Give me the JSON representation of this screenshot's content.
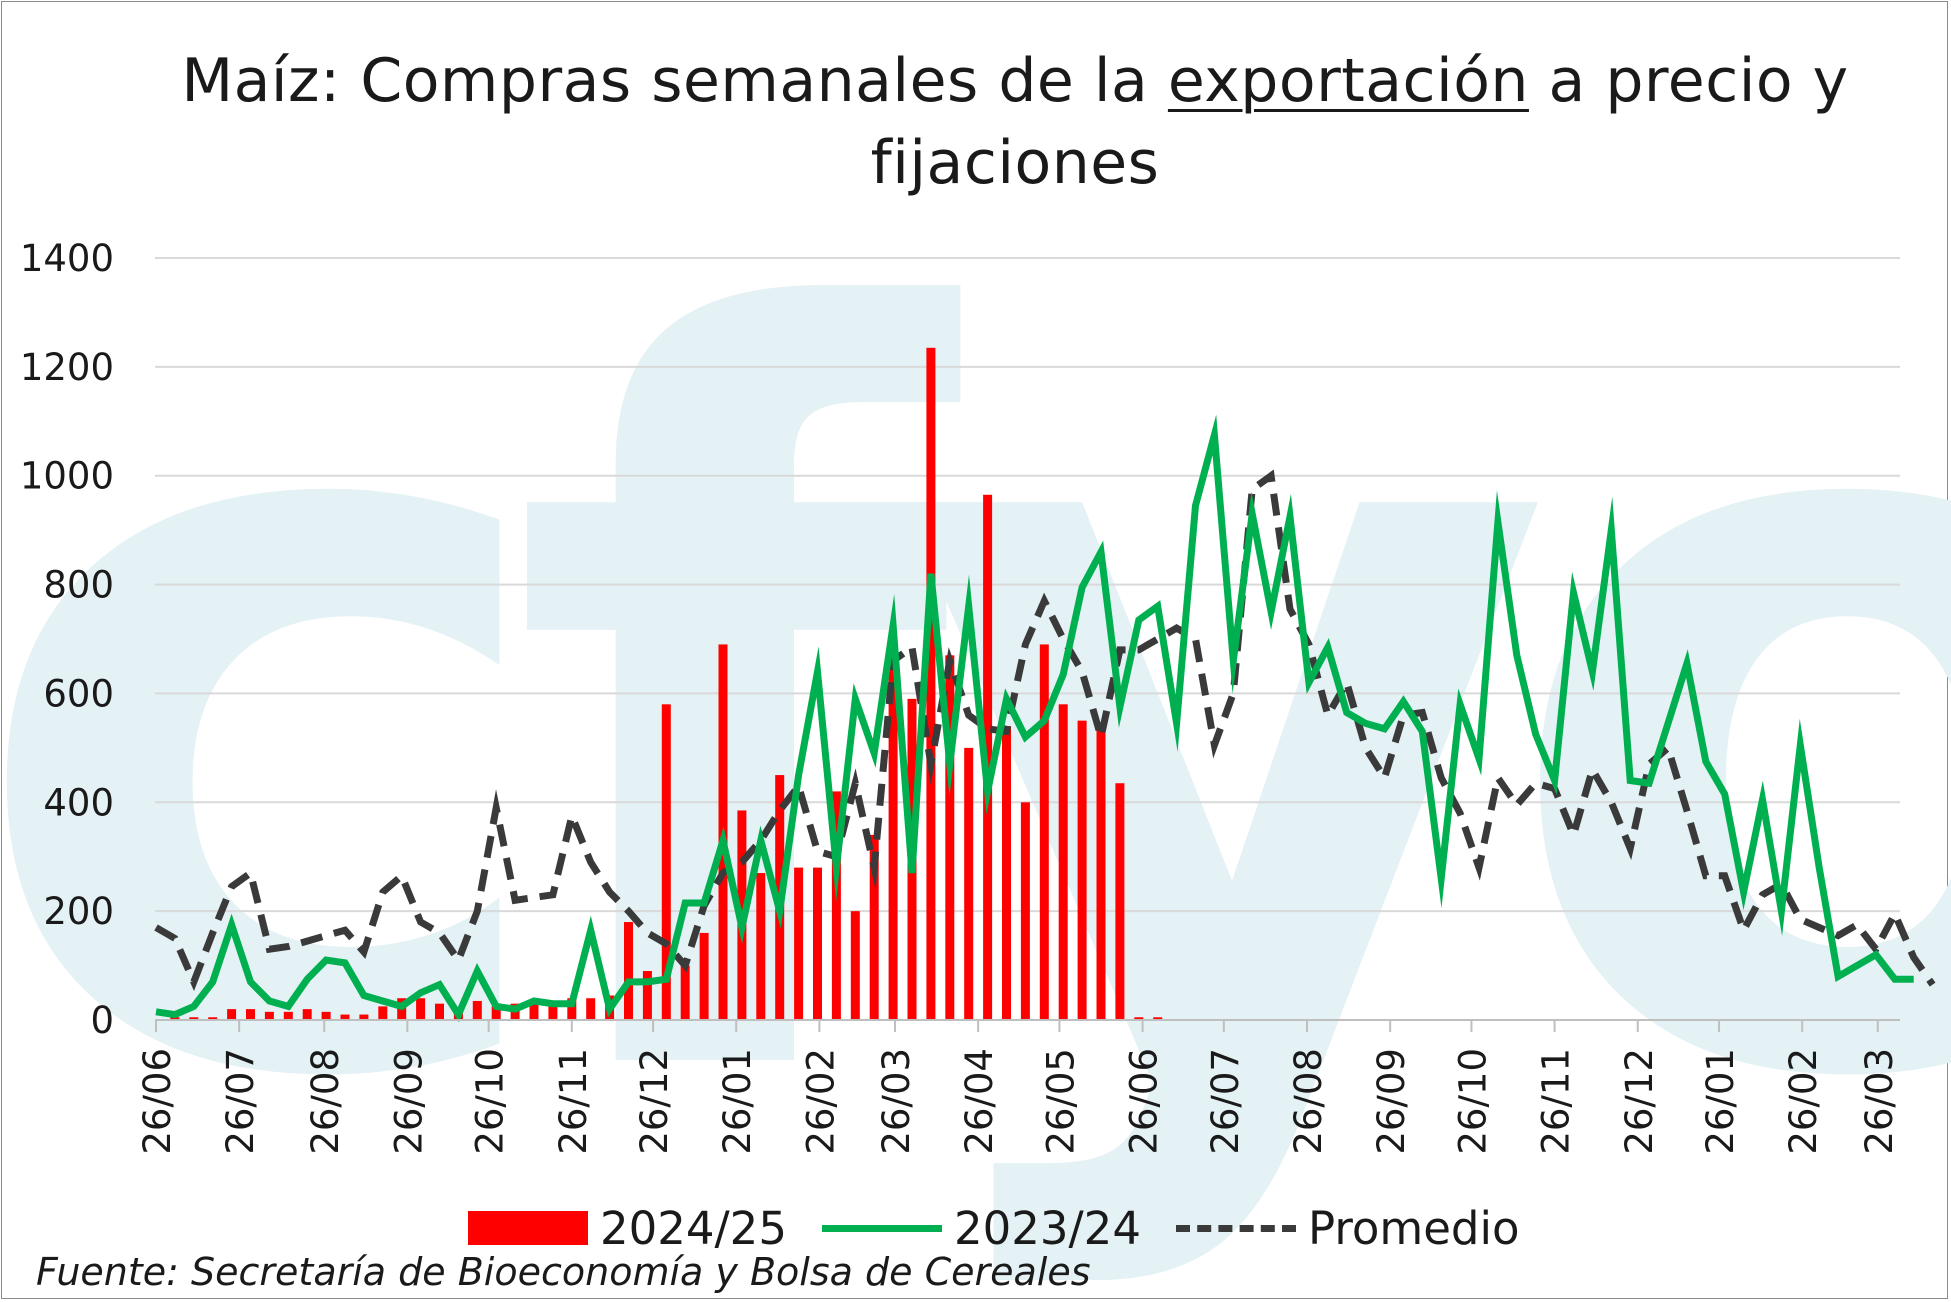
{
  "title_before": "Maíz: Compras semanales de la ",
  "title_underlined": "exportación",
  "title_after": " a precio y fijaciones",
  "source": "Fuente: Secretaría de Bioeconomía y Bolsa de Cereales",
  "colors": {
    "bars": "#ff0000",
    "green": "#00b050",
    "avg": "#3a3a3a",
    "grid": "#d9d9d9",
    "watermark": "#e4f1f5"
  },
  "watermark_text": "cfyo",
  "legend": [
    {
      "label": "2024/25",
      "kind": "bar",
      "color": "#ff0000"
    },
    {
      "label": "2023/24",
      "kind": "line",
      "color": "#00b050"
    },
    {
      "label": "Promedio",
      "kind": "dashed",
      "color": "#3a3a3a"
    }
  ],
  "chart_data": {
    "type": "bar",
    "title": "Maíz: Compras semanales de la exportación a precio y fijaciones",
    "ylim": [
      0,
      1400
    ],
    "yticks": [
      0,
      200,
      400,
      600,
      800,
      1000,
      1200,
      1400
    ],
    "grid": true,
    "legend_position": "bottom",
    "x_weeks": 93,
    "xtick_labels": [
      {
        "week": 0,
        "label": "26/06"
      },
      {
        "week": 4.4,
        "label": "26/07"
      },
      {
        "week": 8.9,
        "label": "26/08"
      },
      {
        "week": 13.3,
        "label": "26/09"
      },
      {
        "week": 17.6,
        "label": "26/10"
      },
      {
        "week": 22,
        "label": "26/11"
      },
      {
        "week": 26.3,
        "label": "26/12"
      },
      {
        "week": 30.7,
        "label": "26/01"
      },
      {
        "week": 35.1,
        "label": "26/02"
      },
      {
        "week": 39.1,
        "label": "26/03"
      },
      {
        "week": 43.5,
        "label": "26/04"
      },
      {
        "week": 47.8,
        "label": "26/05"
      },
      {
        "week": 52.2,
        "label": "26/06"
      },
      {
        "week": 56.5,
        "label": "26/07"
      },
      {
        "week": 60.9,
        "label": "26/08"
      },
      {
        "week": 65.3,
        "label": "26/09"
      },
      {
        "week": 69.6,
        "label": "26/10"
      },
      {
        "week": 74,
        "label": "26/11"
      },
      {
        "week": 78.4,
        "label": "26/12"
      },
      {
        "week": 82.7,
        "label": "26/01"
      },
      {
        "week": 87.1,
        "label": "26/02"
      },
      {
        "week": 91.1,
        "label": "26/03"
      }
    ],
    "series": [
      {
        "name": "2024/25",
        "kind": "bar",
        "values": [
          0,
          5,
          5,
          5,
          20,
          20,
          15,
          15,
          20,
          15,
          10,
          10,
          25,
          40,
          40,
          30,
          20,
          35,
          25,
          30,
          35,
          30,
          40,
          40,
          45,
          180,
          90,
          580,
          100,
          160,
          690,
          385,
          270,
          450,
          280,
          280,
          420,
          200,
          340,
          660,
          590,
          1235,
          670,
          500,
          965,
          540,
          400,
          690,
          580,
          550,
          545,
          435,
          5,
          5
        ]
      },
      {
        "name": "2023/24",
        "kind": "line",
        "values": [
          15,
          10,
          25,
          70,
          175,
          70,
          35,
          25,
          75,
          110,
          105,
          45,
          35,
          25,
          50,
          65,
          10,
          90,
          25,
          20,
          35,
          30,
          30,
          165,
          20,
          70,
          70,
          75,
          215,
          215,
          330,
          170,
          330,
          200,
          450,
          640,
          280,
          590,
          490,
          725,
          270,
          820,
          470,
          760,
          420,
          590,
          520,
          550,
          635,
          795,
          860,
          575,
          735,
          760,
          545,
          945,
          1075,
          660,
          930,
          750,
          925,
          620,
          685,
          565,
          545,
          535,
          585,
          530,
          260,
          580,
          480,
          915,
          670,
          525,
          440,
          785,
          640,
          900,
          440,
          435,
          545,
          655,
          475,
          415,
          235,
          405,
          200,
          505,
          280,
          80,
          100,
          120,
          75,
          75
        ]
      },
      {
        "name": "Promedio",
        "kind": "dashed",
        "values": [
          170,
          150,
          70,
          160,
          245,
          270,
          130,
          135,
          145,
          155,
          165,
          125,
          235,
          265,
          180,
          160,
          110,
          200,
          390,
          220,
          225,
          230,
          375,
          290,
          235,
          200,
          160,
          140,
          100,
          210,
          270,
          290,
          330,
          385,
          430,
          310,
          300,
          435,
          280,
          660,
          685,
          470,
          660,
          560,
          535,
          530,
          690,
          770,
          700,
          640,
          520,
          680,
          680,
          700,
          720,
          700,
          505,
          600,
          975,
          1000,
          755,
          690,
          560,
          620,
          500,
          445,
          560,
          565,
          445,
          380,
          280,
          445,
          395,
          435,
          425,
          340,
          460,
          400,
          315,
          470,
          500,
          385,
          265,
          265,
          165,
          230,
          250,
          185,
          170,
          155,
          175,
          130,
          195,
          115,
          65
        ]
      }
    ]
  }
}
